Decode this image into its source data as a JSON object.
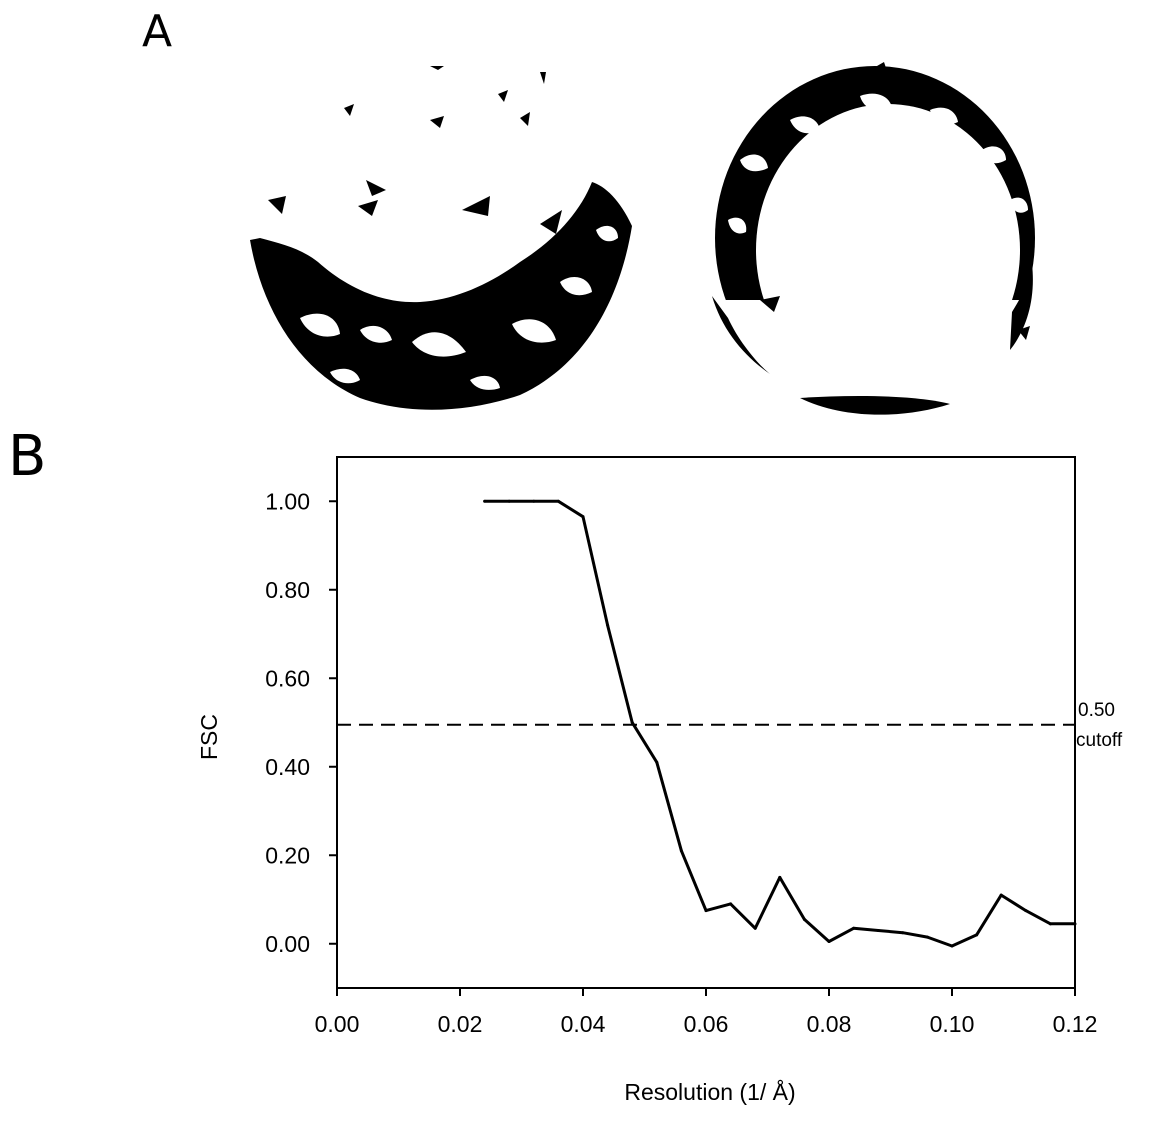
{
  "panels": {
    "a_label": "A",
    "b_label": "B"
  },
  "chart_data": {
    "type": "line",
    "title": "",
    "xlabel": "Resolution (1/ Å)",
    "ylabel": "FSC",
    "xlim": [
      0.0,
      0.12
    ],
    "ylim": [
      -0.1,
      1.1
    ],
    "x_ticks": [
      "0.00",
      "0.02",
      "0.04",
      "0.06",
      "0.08",
      "0.10",
      "0.12"
    ],
    "y_ticks": [
      "0.00",
      "0.20",
      "0.40",
      "0.60",
      "0.80",
      "1.00"
    ],
    "grid": false,
    "legend": "none",
    "series": [
      {
        "x": [
          0.024,
          0.028,
          0.032,
          0.036,
          0.04,
          0.044,
          0.048,
          0.052,
          0.056,
          0.06,
          0.064,
          0.068,
          0.072,
          0.076,
          0.08,
          0.084,
          0.088,
          0.092,
          0.096,
          0.1,
          0.104,
          0.108,
          0.112,
          0.116,
          0.12
        ],
        "y": [
          1.0,
          1.0,
          1.0,
          1.0,
          0.965,
          0.72,
          0.5,
          0.41,
          0.21,
          0.075,
          0.09,
          0.035,
          0.15,
          0.055,
          0.005,
          0.035,
          0.03,
          0.025,
          0.015,
          -0.005,
          0.02,
          0.11,
          0.075,
          0.045,
          0.045
        ]
      }
    ],
    "cutoff": {
      "y": 0.495,
      "label_line1": "0.50",
      "label_line2": "cutoff"
    }
  }
}
